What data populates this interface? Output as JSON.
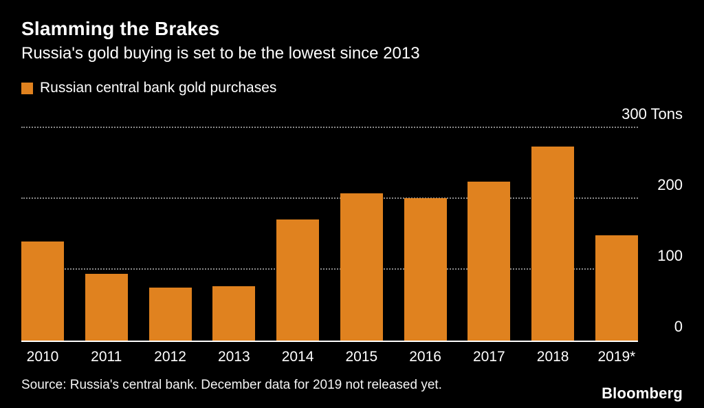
{
  "header": {
    "title": "Slamming the Brakes",
    "subtitle": "Russia's gold buying is set to be the lowest since 2013"
  },
  "legend": {
    "label": "Russian central bank gold purchases",
    "swatch_color": "#E0821F"
  },
  "chart_data": {
    "type": "bar",
    "categories": [
      "2010",
      "2011",
      "2012",
      "2013",
      "2014",
      "2015",
      "2016",
      "2017",
      "2018",
      "2019*"
    ],
    "values": [
      140,
      94,
      75,
      77,
      171,
      208,
      201,
      224,
      274,
      149
    ],
    "title": "Slamming the Brakes",
    "subtitle": "Russia's gold buying is set to be the lowest since 2013",
    "series_name": "Russian central bank gold purchases",
    "xlabel": "",
    "ylabel": "Tons",
    "ylim": [
      0,
      300
    ],
    "yticks": [
      0,
      100,
      200,
      300
    ],
    "ytick_labels": [
      "0",
      "100",
      "200",
      "300 Tons"
    ],
    "bar_color": "#E0821F",
    "background_color": "#000000",
    "grid": "horizontal-dotted",
    "legend_position": "top-left",
    "y_axis_side": "right"
  },
  "footer": {
    "source": "Source: Russia's central bank. December data for 2019 not released yet.",
    "brand": "Bloomberg"
  }
}
